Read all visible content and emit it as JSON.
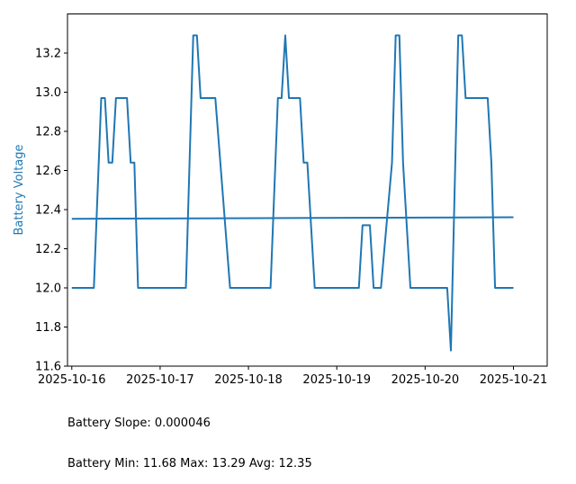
{
  "chart_data": {
    "type": "line",
    "title": "",
    "xlabel": "",
    "ylabel": "Battery Voltage",
    "ylim": [
      11.6,
      13.4
    ],
    "xlim": [
      "2025-10-15 22:50",
      "2025-10-21 09:10"
    ],
    "x_ticks": [
      "2025-10-16",
      "2025-10-17",
      "2025-10-18",
      "2025-10-19",
      "2025-10-20",
      "2025-10-21"
    ],
    "y_ticks": [
      11.6,
      11.8,
      12.0,
      12.2,
      12.4,
      12.6,
      12.8,
      13.0,
      13.2
    ],
    "y_tick_labels": [
      "11.6",
      "11.8",
      "12.0",
      "12.2",
      "12.4",
      "12.6",
      "12.8",
      "13.0",
      "13.2"
    ],
    "grid": false,
    "series": [
      {
        "color": "#1f77b4",
        "points": [
          [
            "2025-10-16 00:00",
            12.0
          ],
          [
            "2025-10-16 06:00",
            12.0
          ],
          [
            "2025-10-16 08:00",
            12.97
          ],
          [
            "2025-10-16 09:00",
            12.97
          ],
          [
            "2025-10-16 10:00",
            12.64
          ],
          [
            "2025-10-16 11:00",
            12.64
          ],
          [
            "2025-10-16 12:00",
            12.97
          ],
          [
            "2025-10-16 15:00",
            12.97
          ],
          [
            "2025-10-16 16:00",
            12.64
          ],
          [
            "2025-10-16 17:00",
            12.64
          ],
          [
            "2025-10-16 18:00",
            12.0
          ],
          [
            "2025-10-17 07:00",
            12.0
          ],
          [
            "2025-10-17 09:00",
            13.29
          ],
          [
            "2025-10-17 10:00",
            13.29
          ],
          [
            "2025-10-17 11:00",
            12.97
          ],
          [
            "2025-10-17 15:00",
            12.97
          ],
          [
            "2025-10-17 19:00",
            12.0
          ],
          [
            "2025-10-18 06:00",
            12.0
          ],
          [
            "2025-10-18 08:00",
            12.97
          ],
          [
            "2025-10-18 09:00",
            12.97
          ],
          [
            "2025-10-18 10:00",
            13.29
          ],
          [
            "2025-10-18 11:00",
            12.97
          ],
          [
            "2025-10-18 14:00",
            12.97
          ],
          [
            "2025-10-18 15:00",
            12.64
          ],
          [
            "2025-10-18 16:00",
            12.64
          ],
          [
            "2025-10-18 18:00",
            12.0
          ],
          [
            "2025-10-19 06:00",
            12.0
          ],
          [
            "2025-10-19 07:00",
            12.32
          ],
          [
            "2025-10-19 09:00",
            12.32
          ],
          [
            "2025-10-19 10:00",
            12.0
          ],
          [
            "2025-10-19 12:00",
            12.0
          ],
          [
            "2025-10-19 15:00",
            12.64
          ],
          [
            "2025-10-19 16:00",
            13.29
          ],
          [
            "2025-10-19 17:00",
            13.29
          ],
          [
            "2025-10-19 18:00",
            12.64
          ],
          [
            "2025-10-19 20:00",
            12.0
          ],
          [
            "2025-10-20 06:00",
            12.0
          ],
          [
            "2025-10-20 07:00",
            11.68
          ],
          [
            "2025-10-20 09:00",
            13.29
          ],
          [
            "2025-10-20 10:00",
            13.29
          ],
          [
            "2025-10-20 11:00",
            12.97
          ],
          [
            "2025-10-20 17:00",
            12.97
          ],
          [
            "2025-10-20 18:00",
            12.64
          ],
          [
            "2025-10-20 19:00",
            12.0
          ],
          [
            "2025-10-21 00:00",
            12.0
          ]
        ]
      },
      {
        "color": "#1f77b4",
        "points": [
          [
            "2025-10-16 00:00",
            12.353
          ],
          [
            "2025-10-21 00:00",
            12.361
          ]
        ]
      }
    ]
  },
  "stats": {
    "slope_line": "Battery Slope: 0.000046",
    "minmax_line": "Battery Min: 11.68 Max: 13.29 Avg: 12.35"
  }
}
